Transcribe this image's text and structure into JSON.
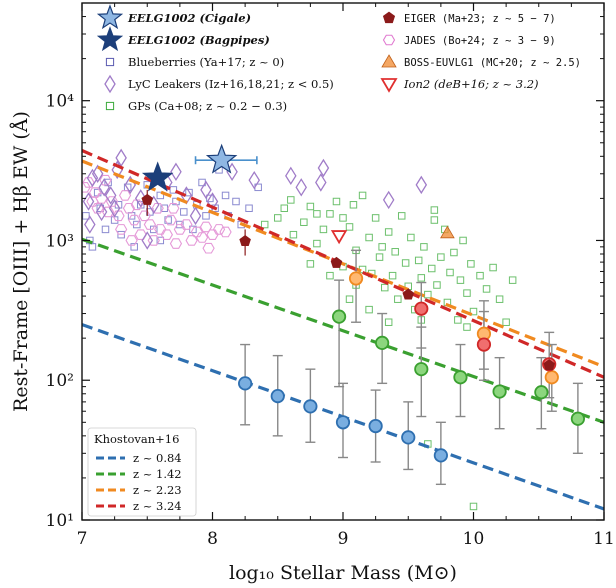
{
  "chart_data": {
    "type": "scatter",
    "xlabel": "log₁₀ Stellar Mass (M⊙)",
    "ylabel": "Rest-Frame [OIII] + Hβ EW (Å)",
    "xlim": [
      7,
      11
    ],
    "ylim": [
      10,
      50000
    ],
    "yscale": "log",
    "x_ticks": [
      "7",
      "8",
      "9",
      "10",
      "11"
    ],
    "y_ticks": [
      {
        "value": 10,
        "label": "10¹"
      },
      {
        "value": 100,
        "label": "10²"
      },
      {
        "value": 1000,
        "label": "10³"
      },
      {
        "value": 10000,
        "label": "10⁴"
      }
    ],
    "grid": false,
    "legend_top": {
      "col1": [
        {
          "label": "EELG1002 (Cigale)",
          "marker": "star",
          "color": "#8fb7e3"
        },
        {
          "label": "EELG1002 (Bagpipes)",
          "marker": "star",
          "color": "#1c3f7a"
        },
        {
          "label": "Blueberries (Ya+17; z ~ 0)",
          "marker": "square-open",
          "color": "#5a5ab0"
        },
        {
          "label": "LyC Leakers (Iz+16,18,21; z < 0.5)",
          "marker": "diamond-open",
          "color": "#a07cc8"
        },
        {
          "label": "GPs (Ca+08; z ~ 0.2 − 0.3)",
          "marker": "square-open",
          "color": "#3aaa3a"
        }
      ],
      "col2": [
        {
          "label": "EIGER (Ma+23; z ~ 5 − 7)",
          "marker": "pentagon",
          "color": "#8b1a1a"
        },
        {
          "label": "JADES (Bo+24; z ~ 3 − 9)",
          "marker": "hexagon-open",
          "color": "#e07ad0"
        },
        {
          "label": "BOSS-EUVLG1 (MC+20; z ~ 2.5)",
          "marker": "triangle-up",
          "color": "#f08a30"
        },
        {
          "label": "Ion2 (deB+16; z ~ 3.2)",
          "marker": "triangle-down",
          "color": "#e03030"
        }
      ]
    },
    "legend_bottom": {
      "title": "Khostovan+16",
      "entries": [
        {
          "label": "z ~ 0.84",
          "color": "#2e6fb0"
        },
        {
          "label": "z ~ 1.42",
          "color": "#3aa030"
        },
        {
          "label": "z ~ 2.23",
          "color": "#f08a20"
        },
        {
          "label": "z ~ 3.24",
          "color": "#d02828"
        }
      ]
    },
    "trend_lines": [
      {
        "name": "z ~ 0.84",
        "color": "#2e6fb0",
        "x": [
          7,
          11
        ],
        "y": [
          250,
          12
        ]
      },
      {
        "name": "z ~ 1.42",
        "color": "#3aa030",
        "x": [
          7,
          11
        ],
        "y": [
          1020,
          50
        ]
      },
      {
        "name": "z ~ 2.23",
        "color": "#f08a20",
        "x": [
          7,
          11
        ],
        "y": [
          3700,
          125
        ]
      },
      {
        "name": "z ~ 3.24",
        "color": "#d02828",
        "x": [
          7,
          11
        ],
        "y": [
          4400,
          105
        ]
      }
    ],
    "binned_points": [
      {
        "series": "z ~ 0.84",
        "color": "#2e6fb0",
        "fill": "#7aaee0",
        "points": [
          {
            "x": 8.25,
            "y": 95,
            "lo": 48,
            "hi": 180
          },
          {
            "x": 8.5,
            "y": 77,
            "lo": 40,
            "hi": 150
          },
          {
            "x": 8.75,
            "y": 65,
            "lo": 36,
            "hi": 120
          },
          {
            "x": 9.0,
            "y": 50,
            "lo": 28,
            "hi": 95
          },
          {
            "x": 9.25,
            "y": 47,
            "lo": 26,
            "hi": 85
          },
          {
            "x": 9.5,
            "y": 39,
            "lo": 23,
            "hi": 70
          },
          {
            "x": 9.75,
            "y": 29,
            "lo": 18,
            "hi": 50
          }
        ]
      },
      {
        "series": "z ~ 1.42",
        "color": "#3aa030",
        "fill": "#8cd67e",
        "points": [
          {
            "x": 8.97,
            "y": 285,
            "lo": 90,
            "hi": 520
          },
          {
            "x": 9.3,
            "y": 185,
            "lo": 95,
            "hi": 300
          },
          {
            "x": 9.6,
            "y": 120,
            "lo": 55,
            "hi": 240
          },
          {
            "x": 9.9,
            "y": 105,
            "lo": 55,
            "hi": 180
          },
          {
            "x": 10.2,
            "y": 83,
            "lo": 45,
            "hi": 145
          },
          {
            "x": 10.52,
            "y": 82,
            "lo": 45,
            "hi": 145
          },
          {
            "x": 10.8,
            "y": 53,
            "lo": 30,
            "hi": 95
          }
        ]
      },
      {
        "series": "z ~ 2.23",
        "color": "#f08a20",
        "fill": "#ffb870",
        "points": [
          {
            "x": 9.1,
            "y": 535,
            "lo": 260,
            "hi": 850
          },
          {
            "x": 10.08,
            "y": 215,
            "lo": 120,
            "hi": 370
          },
          {
            "x": 10.6,
            "y": 105,
            "lo": 60,
            "hi": 180
          }
        ]
      },
      {
        "series": "z ~ 3.24",
        "color": "#d02828",
        "fill": "#f06e6e",
        "points": [
          {
            "x": 9.6,
            "y": 325,
            "lo": 170,
            "hi": 500
          },
          {
            "x": 10.08,
            "y": 180,
            "lo": 100,
            "hi": 310
          },
          {
            "x": 10.58,
            "y": 130,
            "lo": 75,
            "hi": 220
          }
        ]
      }
    ],
    "eelg1002": [
      {
        "label": "EELG1002 (Cigale)",
        "color": "#8fb7e3",
        "x": 8.07,
        "y": 3750,
        "xerr": [
          0.2,
          0.27
        ]
      },
      {
        "label": "EELG1002 (Bagpipes)",
        "color": "#1c3f7a",
        "x": 7.58,
        "y": 2800
      }
    ],
    "eiger": [
      {
        "x": 7.5,
        "y": 1950,
        "yerr": [
          1500,
          2300
        ]
      },
      {
        "x": 8.25,
        "y": 990,
        "yerr": [
          780,
          1200
        ]
      },
      {
        "x": 8.95,
        "y": 690
      },
      {
        "x": 9.5,
        "y": 410
      },
      {
        "x": 10.58,
        "y": 128
      }
    ],
    "ion2": {
      "x": 8.97,
      "y": 1080
    },
    "boss_euvlg1": {
      "x": 9.8,
      "y": 1130
    },
    "lyc_leakers": [
      [
        7.05,
        1900
      ],
      [
        7.08,
        2800
      ],
      [
        7.12,
        3000
      ],
      [
        7.17,
        2400
      ],
      [
        7.22,
        2100
      ],
      [
        7.27,
        3200
      ],
      [
        7.3,
        3900
      ],
      [
        7.37,
        2500
      ],
      [
        7.45,
        2000
      ],
      [
        7.5,
        1000
      ],
      [
        7.55,
        1800
      ],
      [
        7.65,
        2600
      ],
      [
        7.72,
        3100
      ],
      [
        7.8,
        2100
      ],
      [
        7.87,
        1500
      ],
      [
        7.95,
        2300
      ],
      [
        8.0,
        1900
      ],
      [
        8.15,
        3100
      ],
      [
        8.32,
        2700
      ],
      [
        8.6,
        2900
      ],
      [
        8.68,
        2400
      ],
      [
        8.83,
        2600
      ],
      [
        8.85,
        3300
      ],
      [
        9.35,
        1950
      ],
      [
        9.6,
        2500
      ],
      [
        7.06,
        1300
      ],
      [
        7.15,
        1600
      ],
      [
        7.25,
        1700
      ]
    ],
    "blueberries": [
      [
        7.03,
        1500
      ],
      [
        7.06,
        1000
      ],
      [
        7.08,
        900
      ],
      [
        7.12,
        2200
      ],
      [
        7.14,
        1700
      ],
      [
        7.18,
        1200
      ],
      [
        7.2,
        2600
      ],
      [
        7.25,
        1400
      ],
      [
        7.28,
        1800
      ],
      [
        7.3,
        1100
      ],
      [
        7.35,
        2400
      ],
      [
        7.38,
        1500
      ],
      [
        7.42,
        1300
      ],
      [
        7.45,
        1800
      ],
      [
        7.5,
        2500
      ],
      [
        7.52,
        1600
      ],
      [
        7.55,
        1200
      ],
      [
        7.6,
        2100
      ],
      [
        7.63,
        1700
      ],
      [
        7.66,
        1400
      ],
      [
        7.7,
        2300
      ],
      [
        7.72,
        1900
      ],
      [
        7.75,
        1300
      ],
      [
        7.78,
        1600
      ],
      [
        7.82,
        2200
      ],
      [
        7.85,
        1200
      ],
      [
        7.88,
        1800
      ],
      [
        7.92,
        2600
      ],
      [
        7.95,
        1500
      ],
      [
        7.98,
        2000
      ],
      [
        8.02,
        1700
      ],
      [
        8.05,
        3200
      ],
      [
        8.1,
        2100
      ],
      [
        8.12,
        1500
      ],
      [
        8.18,
        1900
      ],
      [
        8.22,
        1300
      ],
      [
        8.28,
        1700
      ],
      [
        8.35,
        2400
      ],
      [
        7.4,
        900
      ],
      [
        7.6,
        1000
      ]
    ],
    "jades": [
      [
        7.02,
        2400
      ],
      [
        7.05,
        2600
      ],
      [
        7.08,
        1900
      ],
      [
        7.1,
        2200
      ],
      [
        7.12,
        1700
      ],
      [
        7.15,
        2000
      ],
      [
        7.2,
        1600
      ],
      [
        7.23,
        1900
      ],
      [
        7.28,
        1500
      ],
      [
        7.3,
        1200
      ],
      [
        7.33,
        2100
      ],
      [
        7.36,
        1700
      ],
      [
        7.4,
        1400
      ],
      [
        7.45,
        1100
      ],
      [
        7.48,
        1500
      ],
      [
        7.52,
        1300
      ],
      [
        7.55,
        1000
      ],
      [
        7.58,
        1700
      ],
      [
        7.6,
        1200
      ],
      [
        7.65,
        1100
      ],
      [
        7.68,
        1400
      ],
      [
        7.72,
        950
      ],
      [
        7.75,
        1200
      ],
      [
        7.8,
        1300
      ],
      [
        7.84,
        1000
      ],
      [
        7.88,
        1150
      ],
      [
        7.92,
        1050
      ],
      [
        7.95,
        1250
      ],
      [
        8.0,
        1100
      ],
      [
        8.05,
        1200
      ],
      [
        8.1,
        1150
      ],
      [
        7.97,
        880
      ],
      [
        7.18,
        2700
      ],
      [
        7.42,
        1800
      ],
      [
        7.38,
        1000
      ],
      [
        7.7,
        1700
      ]
    ],
    "gps": [
      [
        8.4,
        1300
      ],
      [
        8.5,
        1450
      ],
      [
        8.55,
        1700
      ],
      [
        8.6,
        1950
      ],
      [
        8.62,
        1100
      ],
      [
        8.7,
        1350
      ],
      [
        8.75,
        1750
      ],
      [
        8.8,
        950
      ],
      [
        8.85,
        1200
      ],
      [
        8.9,
        1550
      ],
      [
        8.95,
        1900
      ],
      [
        9.0,
        650
      ],
      [
        9.05,
        1250
      ],
      [
        9.08,
        1800
      ],
      [
        9.1,
        850
      ],
      [
        9.15,
        2100
      ],
      [
        9.2,
        1050
      ],
      [
        9.22,
        580
      ],
      [
        9.25,
        1450
      ],
      [
        9.28,
        760
      ],
      [
        9.3,
        900
      ],
      [
        9.32,
        460
      ],
      [
        9.35,
        1150
      ],
      [
        9.38,
        560
      ],
      [
        9.4,
        830
      ],
      [
        9.42,
        380
      ],
      [
        9.45,
        1500
      ],
      [
        9.48,
        690
      ],
      [
        9.5,
        470
      ],
      [
        9.52,
        1050
      ],
      [
        9.55,
        320
      ],
      [
        9.58,
        720
      ],
      [
        9.6,
        540
      ],
      [
        9.62,
        900
      ],
      [
        9.65,
        410
      ],
      [
        9.68,
        630
      ],
      [
        9.7,
        1400
      ],
      [
        9.72,
        480
      ],
      [
        9.75,
        760
      ],
      [
        9.78,
        1200
      ],
      [
        9.8,
        360
      ],
      [
        9.82,
        590
      ],
      [
        9.85,
        820
      ],
      [
        9.88,
        270
      ],
      [
        9.9,
        520
      ],
      [
        9.92,
        1000
      ],
      [
        9.95,
        420
      ],
      [
        9.98,
        680
      ],
      [
        10.0,
        310
      ],
      [
        10.05,
        560
      ],
      [
        10.1,
        450
      ],
      [
        10.15,
        640
      ],
      [
        10.2,
        380
      ],
      [
        10.3,
        520
      ],
      [
        9.2,
        320
      ],
      [
        9.05,
        380
      ],
      [
        9.0,
        1450
      ],
      [
        8.9,
        560
      ],
      [
        9.1,
        480
      ],
      [
        9.65,
        35
      ],
      [
        10.0,
        12.5
      ],
      [
        9.6,
        270
      ],
      [
        9.35,
        260
      ],
      [
        9.15,
        620
      ],
      [
        8.75,
        680
      ],
      [
        9.95,
        240
      ],
      [
        10.25,
        260
      ],
      [
        9.7,
        1650
      ],
      [
        8.8,
        1550
      ]
    ]
  }
}
